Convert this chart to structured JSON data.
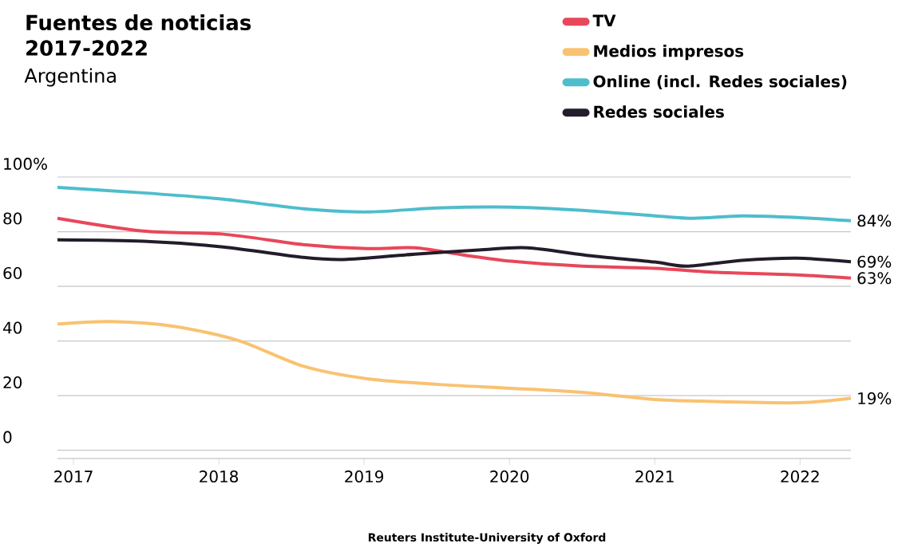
{
  "chart_data": {
    "type": "line",
    "title": "Fuentes de noticias 2017-2022",
    "subtitle": "Argentina",
    "annotations": [
      "Reuters Institute-University of Oxford"
    ],
    "xlim": [
      2016.89,
      2022.35
    ],
    "xticks": [
      2017,
      2018,
      2019,
      2020,
      2021,
      2022
    ],
    "ylim": [
      -3,
      100
    ],
    "yticks": [
      0,
      20,
      40,
      60,
      80,
      {
        "value": 100,
        "label": "100%"
      }
    ],
    "grid": "y",
    "legend": "top right",
    "marker": "none",
    "line_style": "solid",
    "series": [
      {
        "name": "TV",
        "color": "#e8475a",
        "x": [
          2016.89,
          2017.48,
          2018.03,
          2018.58,
          2019.02,
          2019.35,
          2019.68,
          2020.01,
          2020.5,
          2021.0,
          2021.43,
          2021.98,
          2022.35
        ],
        "values": [
          84.9,
          80.2,
          79.1,
          75.3,
          73.8,
          74.1,
          71.5,
          69.2,
          67.4,
          66.6,
          65.1,
          64.2,
          63
        ],
        "value_labels": [
          null,
          null,
          null,
          null,
          null,
          null,
          null,
          null,
          null,
          null,
          null,
          null,
          "63%"
        ]
      },
      {
        "name": "Medios impresos",
        "color": "#f9c271",
        "x": [
          2016.89,
          2017.26,
          2017.7,
          2018.14,
          2018.58,
          2019.02,
          2019.51,
          2020.01,
          2020.5,
          2021.0,
          2021.32,
          2021.98,
          2022.35
        ],
        "values": [
          46.2,
          47.1,
          45.3,
          40.1,
          30.8,
          26.2,
          24.1,
          22.7,
          21.2,
          18.6,
          18.0,
          17.4,
          19
        ],
        "value_labels": [
          null,
          null,
          null,
          null,
          null,
          null,
          null,
          null,
          null,
          null,
          null,
          null,
          "19%"
        ]
      },
      {
        "name": "Online (incl. Redes sociales)",
        "color": "#4ebdcc",
        "x": [
          2016.89,
          2017.48,
          2018.03,
          2018.58,
          2019.02,
          2019.51,
          2020.01,
          2020.5,
          2021.0,
          2021.27,
          2021.6,
          2021.98,
          2022.35
        ],
        "values": [
          96.2,
          94.2,
          91.9,
          88.4,
          87.2,
          88.7,
          89.0,
          87.8,
          85.8,
          84.9,
          85.8,
          85.2,
          84
        ],
        "value_labels": [
          null,
          null,
          null,
          null,
          null,
          null,
          null,
          null,
          null,
          null,
          null,
          null,
          "84%"
        ]
      },
      {
        "name": "Redes sociales",
        "color": "#231c2b",
        "x": [
          2016.89,
          2017.48,
          2018.03,
          2018.58,
          2018.86,
          2019.35,
          2019.79,
          2020.12,
          2020.56,
          2021.0,
          2021.22,
          2021.6,
          2021.98,
          2022.35
        ],
        "values": [
          77.0,
          76.5,
          74.4,
          70.6,
          69.8,
          71.8,
          73.3,
          74.1,
          71.2,
          68.9,
          67.4,
          69.5,
          70.3,
          69
        ],
        "value_labels": [
          null,
          null,
          null,
          null,
          null,
          null,
          null,
          null,
          null,
          null,
          null,
          null,
          null,
          "69%"
        ]
      }
    ]
  }
}
